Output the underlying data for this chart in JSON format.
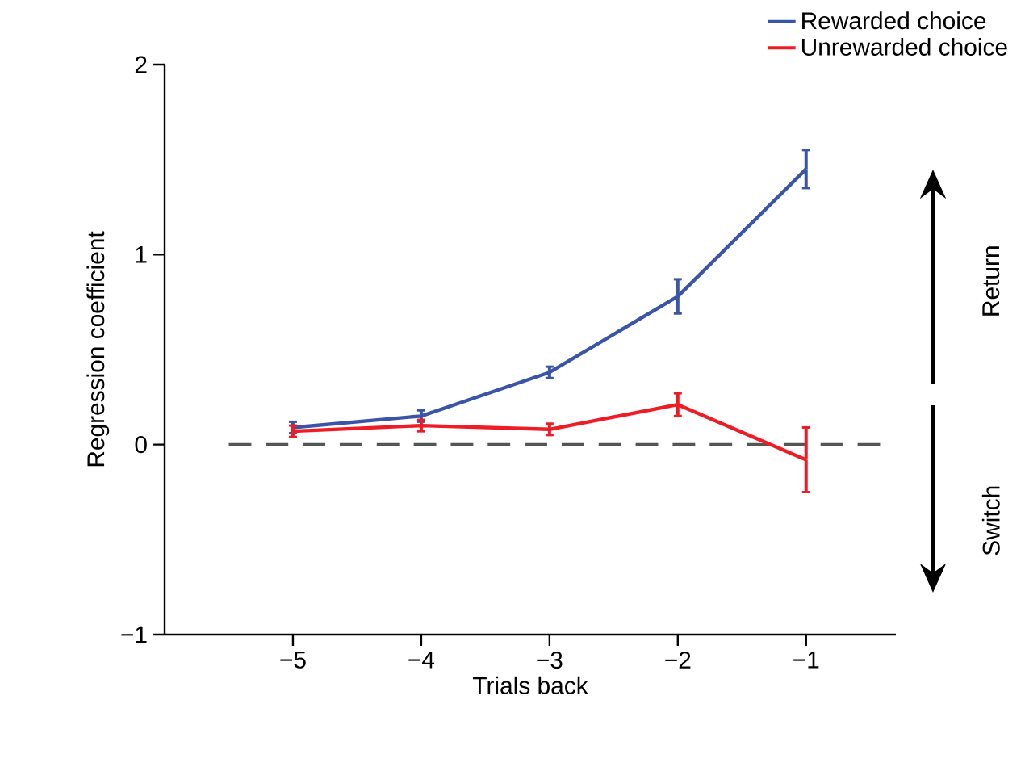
{
  "chart_data": {
    "type": "line",
    "xlabel": "Trials back",
    "ylabel": "Regression coefficient",
    "x": [
      -5,
      -4,
      -3,
      -2,
      -1
    ],
    "series": [
      {
        "name": "Rewarded choice",
        "color": "#3a55a8",
        "values": [
          0.09,
          0.15,
          0.38,
          0.78,
          1.45
        ],
        "errors": [
          0.03,
          0.03,
          0.03,
          0.09,
          0.1
        ]
      },
      {
        "name": "Unrewarded choice",
        "color": "#ee1c25",
        "values": [
          0.07,
          0.1,
          0.08,
          0.21,
          -0.08
        ],
        "errors": [
          0.03,
          0.03,
          0.03,
          0.06,
          0.17
        ]
      }
    ],
    "xlim": [
      -6,
      -0.3
    ],
    "xticks": [
      {
        "value": -5,
        "label": "−5"
      },
      {
        "value": -4,
        "label": "−4"
      },
      {
        "value": -3,
        "label": "−3"
      },
      {
        "value": -2,
        "label": "−2"
      },
      {
        "value": -1,
        "label": "−1"
      }
    ],
    "ylim": [
      -1,
      2
    ],
    "yticks": [
      {
        "value": -1,
        "label": "−1"
      },
      0,
      1,
      2
    ],
    "ref_lines": [
      {
        "axis": "y",
        "value": 0,
        "color": "#555555",
        "line_style": "dashed"
      }
    ],
    "legend": "top right",
    "annotations": [
      "Return",
      "Switch"
    ]
  }
}
